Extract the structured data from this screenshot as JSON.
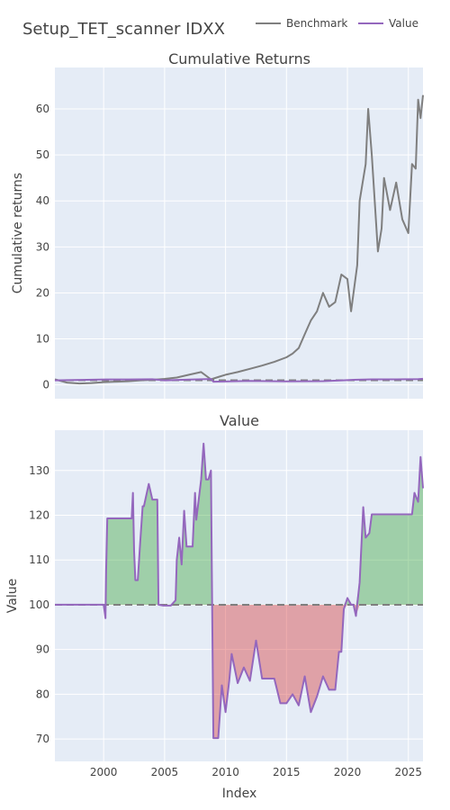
{
  "chart_data": {
    "type": "line",
    "title": "Setup_TET_scanner IDXX",
    "legend": {
      "placement": "top-right",
      "entries": [
        {
          "name": "Benchmark",
          "color": "#7f7f7f"
        },
        {
          "name": "Value",
          "color": "#9467bd"
        }
      ]
    },
    "grid": true,
    "xlabel": "Index",
    "xlim": [
      1996.0,
      2026.2
    ],
    "x_ticks": [
      2000,
      2005,
      2010,
      2015,
      2020,
      2025
    ],
    "subplots": [
      {
        "title": "Cumulative Returns",
        "ylabel": "Cumulative returns",
        "ylim": [
          -3,
          69
        ],
        "y_ticks": [
          0,
          10,
          20,
          30,
          40,
          50,
          60
        ],
        "reference_line": 1,
        "series": [
          {
            "name": "Benchmark",
            "color": "#7f7f7f",
            "x": [
              1996.0,
              1997.0,
              1998.0,
              1999.0,
              2000.0,
              2001.0,
              2002.0,
              2003.0,
              2004.0,
              2005.0,
              2006.0,
              2007.0,
              2008.0,
              2008.8,
              2009.5,
              2010.0,
              2011.0,
              2012.0,
              2013.0,
              2014.0,
              2015.0,
              2015.5,
              2016.0,
              2016.5,
              2017.0,
              2017.5,
              2018.0,
              2018.5,
              2019.0,
              2019.5,
              2020.0,
              2020.3,
              2020.8,
              2021.0,
              2021.5,
              2021.7,
              2022.0,
              2022.5,
              2022.8,
              2023.0,
              2023.5,
              2024.0,
              2024.5,
              2025.0,
              2025.3,
              2025.6,
              2025.8,
              2026.0,
              2026.2
            ],
            "y": [
              1.2,
              0.5,
              0.3,
              0.4,
              0.6,
              0.7,
              0.8,
              1.0,
              1.1,
              1.3,
              1.6,
              2.2,
              2.8,
              1.2,
              1.8,
              2.2,
              2.8,
              3.5,
              4.2,
              5.0,
              6.0,
              6.8,
              8.0,
              11.0,
              14.0,
              16.0,
              20.0,
              17.0,
              18.0,
              24.0,
              23.0,
              16.0,
              26.0,
              40.0,
              48.0,
              60.0,
              50.0,
              29.0,
              34.0,
              45.0,
              38.0,
              44.0,
              36.0,
              33.0,
              48.0,
              47.0,
              62.0,
              58.0,
              63.0
            ]
          },
          {
            "name": "Value",
            "color": "#9467bd",
            "x": [
              1996.0,
              2000.2,
              2002.0,
              2004.0,
              2005.0,
              2007.0,
              2008.8,
              2009.0,
              2012.0,
              2015.0,
              2018.0,
              2019.6,
              2020.5,
              2022.0,
              2024.0,
              2025.8,
              2026.2
            ],
            "y": [
              1.0,
              1.19,
              1.19,
              1.23,
              1.0,
              1.15,
              1.28,
              0.7,
              0.86,
              0.78,
              0.81,
              1.0,
              1.1,
              1.2,
              1.2,
              1.25,
              1.33
            ]
          }
        ]
      },
      {
        "title": "Value",
        "ylabel": "Value",
        "ylim": [
          65,
          139
        ],
        "y_ticks": [
          70,
          80,
          90,
          100,
          110,
          120,
          130
        ],
        "baseline": 100,
        "fill_above_color": "rgba(44,160,44,0.38)",
        "fill_below_color": "rgba(214,39,40,0.38)",
        "series": [
          {
            "name": "Value",
            "color": "#9467bd",
            "x": [
              1996.0,
              2000.0,
              2000.15,
              2000.2,
              2000.3,
              2002.3,
              2002.4,
              2002.5,
              2002.6,
              2002.8,
              2003.0,
              2003.2,
              2003.3,
              2003.7,
              2004.0,
              2004.4,
              2004.5,
              2004.9,
              2005.0,
              2005.5,
              2005.9,
              2006.0,
              2006.2,
              2006.4,
              2006.6,
              2006.8,
              2007.3,
              2007.5,
              2007.6,
              2008.0,
              2008.2,
              2008.4,
              2008.6,
              2008.8,
              2008.9,
              2009.0,
              2009.4,
              2009.7,
              2010.0,
              2010.3,
              2010.5,
              2011.0,
              2011.5,
              2012.0,
              2012.5,
              2013.0,
              2013.5,
              2014.0,
              2014.5,
              2015.0,
              2015.5,
              2016.0,
              2016.5,
              2017.0,
              2017.5,
              2018.0,
              2018.5,
              2019.0,
              2019.3,
              2019.5,
              2019.7,
              2020.0,
              2020.3,
              2020.5,
              2020.7,
              2021.0,
              2021.3,
              2021.5,
              2021.8,
              2022.0,
              2023.0,
              2024.0,
              2025.0,
              2025.3,
              2025.5,
              2025.8,
              2026.0,
              2026.2
            ],
            "y": [
              100.0,
              100.0,
              97.0,
              107.5,
              119.3,
              119.3,
              125.0,
              112.0,
              105.5,
              105.5,
              114.0,
              122.0,
              122.0,
              127.0,
              123.5,
              123.5,
              100.0,
              99.8,
              99.8,
              99.8,
              101.0,
              110.0,
              115.0,
              109.0,
              121.0,
              113.0,
              113.0,
              125.0,
              119.0,
              128.0,
              136.0,
              128.0,
              128.0,
              130.0,
              100.0,
              70.2,
              70.2,
              82.0,
              76.0,
              83.0,
              89.0,
              82.5,
              86.0,
              83.0,
              92.0,
              83.5,
              83.5,
              83.5,
              78.0,
              78.0,
              80.0,
              77.5,
              84.0,
              76.0,
              79.5,
              84.0,
              81.0,
              81.0,
              89.5,
              89.5,
              99.0,
              101.5,
              100.0,
              100.0,
              97.5,
              105.0,
              121.8,
              115.0,
              116.0,
              120.2,
              120.2,
              120.2,
              120.2,
              120.2,
              125.0,
              123.0,
              133.0,
              126.0
            ]
          }
        ]
      }
    ]
  }
}
